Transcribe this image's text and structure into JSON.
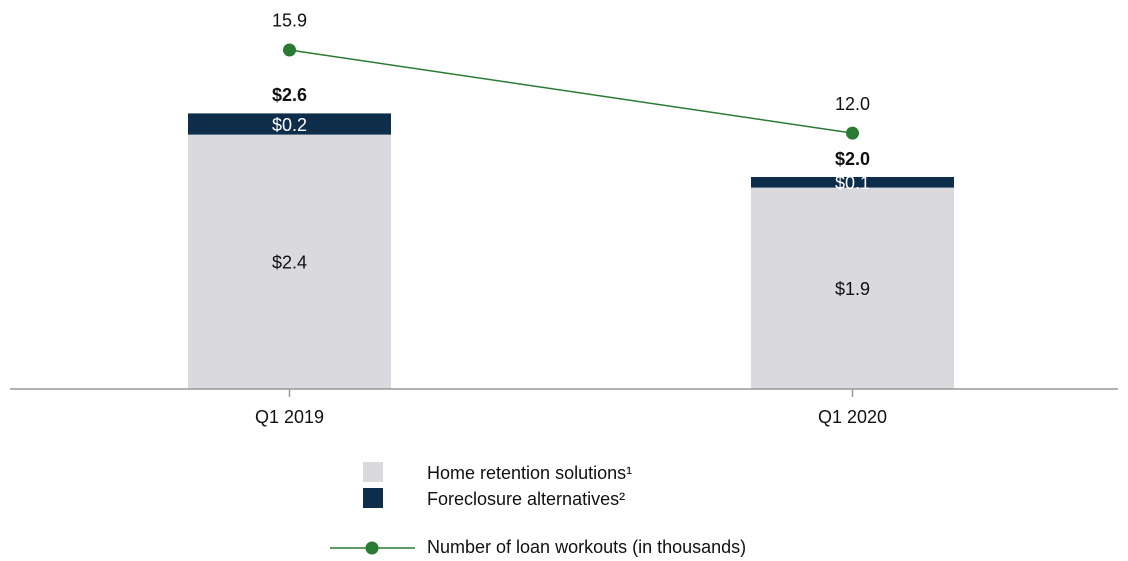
{
  "chart_data": {
    "type": "bar",
    "stacked": true,
    "categories": [
      "Q1 2019",
      "Q1 2020"
    ],
    "series": [
      {
        "name": "Home retention solutions¹",
        "color": "#d9d9de",
        "values": [
          2.4,
          1.9
        ],
        "value_labels": [
          "$2.4",
          "$1.9"
        ],
        "label_color": "#111111"
      },
      {
        "name": "Foreclosure alternatives²",
        "color": "#0d2d4b",
        "values": [
          0.2,
          0.1
        ],
        "value_labels": [
          "$0.2",
          "$0.1"
        ],
        "label_color": "#ffffff"
      },
      {
        "name": "Number of loan workouts (in thousands)",
        "type": "line",
        "axis": "y2",
        "color": "#2a7a33",
        "values": [
          15.9,
          12.0
        ],
        "value_labels": [
          "15.9",
          "12.0"
        ]
      }
    ],
    "totals": [
      2.6,
      2.0
    ],
    "total_labels": [
      "$2.6",
      "$2.0"
    ],
    "ylim": [
      0,
      3.5
    ],
    "y2lim": [
      0,
      17.4
    ]
  }
}
